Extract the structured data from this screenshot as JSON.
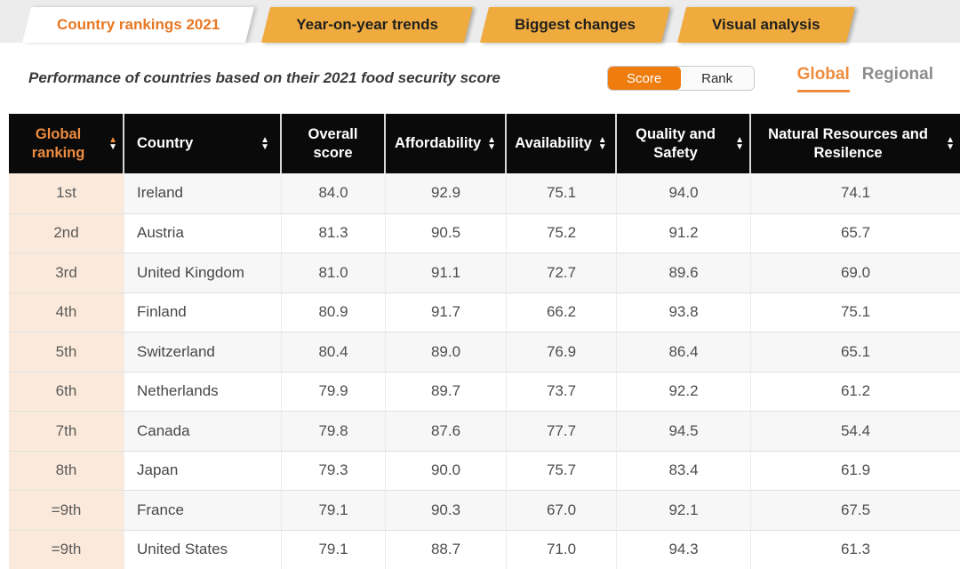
{
  "tabs": [
    {
      "label": "Country rankings 2021",
      "active": true
    },
    {
      "label": "Year-on-year trends",
      "active": false
    },
    {
      "label": "Biggest changes",
      "active": false
    },
    {
      "label": "Visual analysis",
      "active": false
    }
  ],
  "subheader": {
    "title": "Performance of countries based on their 2021 food security score",
    "toggle": {
      "options": [
        "Score",
        "Rank"
      ],
      "selected": "Score"
    },
    "scope": {
      "options": [
        "Global",
        "Regional"
      ],
      "selected": "Global"
    }
  },
  "colors": {
    "accent_orange": "#e87722",
    "tab_amber": "#f0ab3e",
    "toggle_orange": "#ee7c0f",
    "header_bg": "#0a0a0a",
    "sorted_orange": "#ef8c3e",
    "rank_column_bg": "#fbeadb"
  },
  "table": {
    "columns": [
      {
        "label": "Global ranking",
        "sortable": true,
        "sort": "asc"
      },
      {
        "label": "Country",
        "sortable": true,
        "sort": null
      },
      {
        "label": "Overall score",
        "sortable": false,
        "sort": null
      },
      {
        "label": "Affordability",
        "sortable": true,
        "sort": null
      },
      {
        "label": "Availability",
        "sortable": true,
        "sort": null
      },
      {
        "label": "Quality and Safety",
        "sortable": true,
        "sort": null
      },
      {
        "label": "Natural Resources and Resilence",
        "sortable": true,
        "sort": null
      }
    ],
    "rows": [
      {
        "rank": "1st",
        "country": "Ireland",
        "overall": "84.0",
        "affordability": "92.9",
        "availability": "75.1",
        "quality": "94.0",
        "natural": "74.1"
      },
      {
        "rank": "2nd",
        "country": "Austria",
        "overall": "81.3",
        "affordability": "90.5",
        "availability": "75.2",
        "quality": "91.2",
        "natural": "65.7"
      },
      {
        "rank": "3rd",
        "country": "United Kingdom",
        "overall": "81.0",
        "affordability": "91.1",
        "availability": "72.7",
        "quality": "89.6",
        "natural": "69.0"
      },
      {
        "rank": "4th",
        "country": "Finland",
        "overall": "80.9",
        "affordability": "91.7",
        "availability": "66.2",
        "quality": "93.8",
        "natural": "75.1"
      },
      {
        "rank": "5th",
        "country": "Switzerland",
        "overall": "80.4",
        "affordability": "89.0",
        "availability": "76.9",
        "quality": "86.4",
        "natural": "65.1"
      },
      {
        "rank": "6th",
        "country": "Netherlands",
        "overall": "79.9",
        "affordability": "89.7",
        "availability": "73.7",
        "quality": "92.2",
        "natural": "61.2"
      },
      {
        "rank": "7th",
        "country": "Canada",
        "overall": "79.8",
        "affordability": "87.6",
        "availability": "77.7",
        "quality": "94.5",
        "natural": "54.4"
      },
      {
        "rank": "8th",
        "country": "Japan",
        "overall": "79.3",
        "affordability": "90.0",
        "availability": "75.7",
        "quality": "83.4",
        "natural": "61.9"
      },
      {
        "rank": "=9th",
        "country": "France",
        "overall": "79.1",
        "affordability": "90.3",
        "availability": "67.0",
        "quality": "92.1",
        "natural": "67.5"
      },
      {
        "rank": "=9th",
        "country": "United States",
        "overall": "79.1",
        "affordability": "88.7",
        "availability": "71.0",
        "quality": "94.3",
        "natural": "61.3"
      }
    ]
  }
}
